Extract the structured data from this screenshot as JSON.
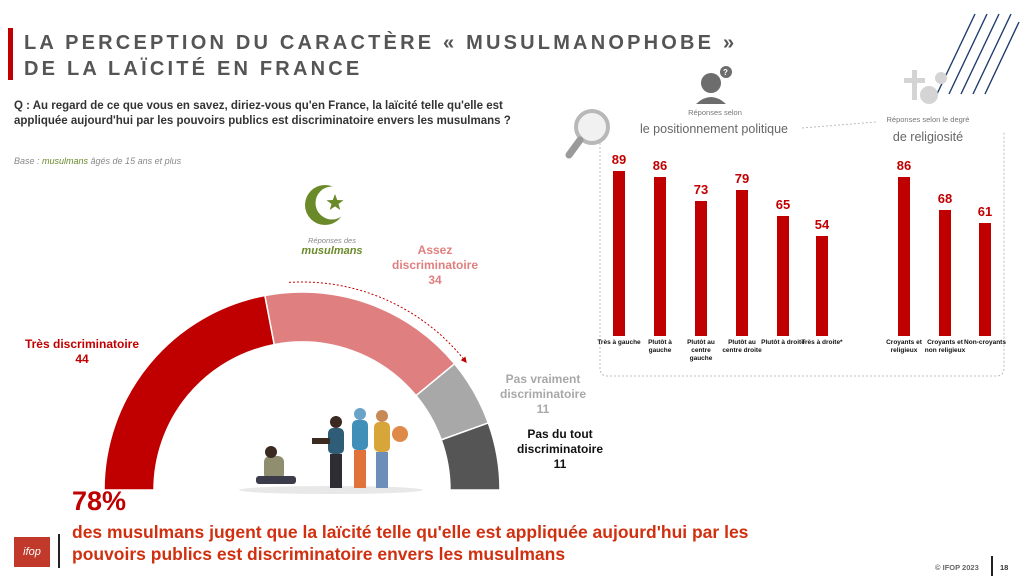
{
  "header": {
    "title_line1": "LA PERCEPTION DU CARACTÈRE « MUSULMANOPHOBE »",
    "title_line2": "DE LA LAÏCITÉ EN FRANCE"
  },
  "question": {
    "text": "Q : Au regard de ce que vous en savez, diriez-vous qu'en France, la laïcité telle qu'elle est appliquée aujourd'hui par les pouvoirs publics est discriminatoire envers les musulmans ?",
    "base_prefix": "Base : ",
    "base_highlight": "musulmans",
    "base_suffix": " âgés de 15 ans et plus"
  },
  "respondents": {
    "small": "Réponses des",
    "big": "musulmans"
  },
  "gauge": {
    "segments": [
      {
        "label": "Très discriminatoire",
        "value": "44",
        "color": "#c00000"
      },
      {
        "label": "Assez discriminatoire",
        "value": "34",
        "color": "#e07f7f"
      },
      {
        "label": "Pas vraiment discriminatoire",
        "value": "11",
        "color": "#a8a8a8"
      },
      {
        "label": "Pas du tout discriminatoire",
        "value": "11",
        "color": "#555555"
      }
    ]
  },
  "conclusion": {
    "percent": "78%",
    "text": "des musulmans jugent que la laïcité telle qu'elle est appliquée aujourd'hui par les pouvoirs publics est discriminatoire envers les musulmans"
  },
  "panels": {
    "politics_small": "Réponses selon",
    "politics_big": "le positionnement politique",
    "religion_small": "Réponses selon le degré",
    "religion_big": "de religiosité"
  },
  "chart_data": [
    {
      "type": "bar",
      "categories": [
        "Très à gauche",
        "Plutôt à gauche",
        "Plutôt au centre gauche",
        "Plutôt au centre droite",
        "Plutôt à droite",
        "Très à droite*"
      ],
      "values": [
        89,
        86,
        73,
        79,
        65,
        54
      ],
      "ylim": [
        0,
        100
      ]
    },
    {
      "type": "bar",
      "categories": [
        "Croyants et religieux",
        "Croyants et non religieux",
        "Non-croyants"
      ],
      "values": [
        86,
        68,
        61
      ],
      "ylim": [
        0,
        100
      ]
    }
  ],
  "footer": {
    "logo": "ifop",
    "copyright": "© IFOP 2023",
    "page": "18"
  },
  "colors": {
    "accent": "#c00000",
    "headline": "#d03010",
    "green": "#6a8a2a"
  }
}
